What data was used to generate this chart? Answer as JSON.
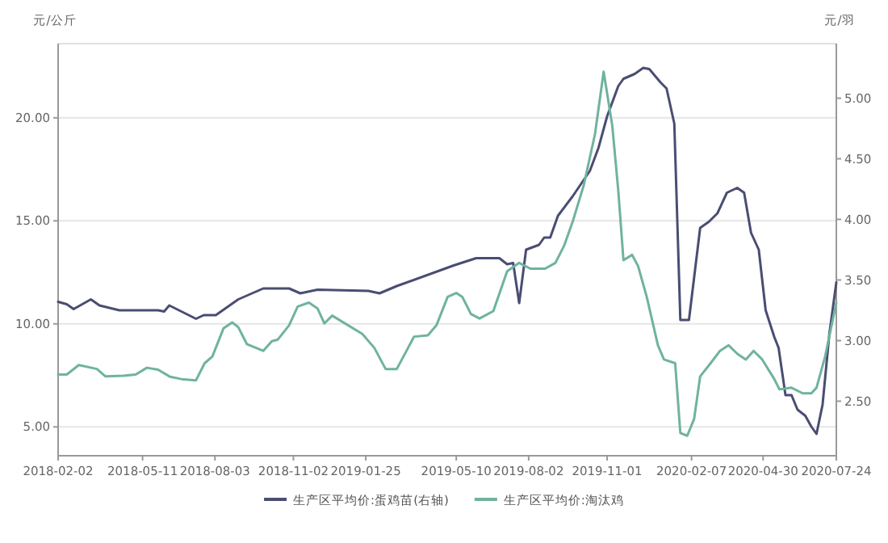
{
  "chart_data": {
    "type": "line",
    "ylabel": "元/公斤",
    "y2label": "元/羽",
    "grid": "y",
    "legend": "bottom",
    "xlim": [
      "2018-02-02",
      "2020-07-24"
    ],
    "xticks": [
      "2018-02-02",
      "2018-05-11",
      "2018-08-03",
      "2018-11-02",
      "2019-01-25",
      "2019-05-10",
      "2019-08-02",
      "2019-11-01",
      "2020-02-07",
      "2020-04-30",
      "2020-07-24"
    ],
    "ylim": [
      3.6,
      23.6
    ],
    "yticks": [
      {
        "value": 5,
        "label": "5.00"
      },
      {
        "value": 10,
        "label": "10.00"
      },
      {
        "value": 15,
        "label": "15.00"
      },
      {
        "value": 20,
        "label": "20.00"
      }
    ],
    "y2lim": [
      2.05,
      5.45
    ],
    "y2ticks": [
      {
        "value": 2.5,
        "label": "2.50"
      },
      {
        "value": 3,
        "label": "3.00"
      },
      {
        "value": 3.5,
        "label": "3.50"
      },
      {
        "value": 4,
        "label": "4.00"
      },
      {
        "value": 4.5,
        "label": "4.50"
      },
      {
        "value": 5,
        "label": "5.00"
      }
    ],
    "series": [
      {
        "name": "生产区平均价:蛋鸡苗(右轴)",
        "color": "#4a4d72",
        "axis": "y2",
        "x": [
          "2018-02-02",
          "2018-02-12",
          "2018-02-20",
          "2018-03-12",
          "2018-03-22",
          "2018-04-14",
          "2018-05-29",
          "2018-06-05",
          "2018-06-11",
          "2018-07-12",
          "2018-07-21",
          "2018-08-04",
          "2018-08-30",
          "2018-09-28",
          "2018-10-28",
          "2018-11-10",
          "2018-11-30",
          "2019-01-28",
          "2019-02-10",
          "2019-03-02",
          "2019-05-07",
          "2019-06-02",
          "2019-06-29",
          "2019-07-08",
          "2019-07-15",
          "2019-07-22",
          "2019-07-30",
          "2019-08-14",
          "2019-08-20",
          "2019-08-27",
          "2019-09-05",
          "2019-09-22",
          "2019-10-12",
          "2019-10-22",
          "2019-11-01",
          "2019-11-14",
          "2019-11-20",
          "2019-12-03",
          "2019-12-13",
          "2019-12-20",
          "2020-01-02",
          "2020-01-09",
          "2020-01-18",
          "2020-01-25",
          "2020-02-04",
          "2020-02-17",
          "2020-02-27",
          "2020-03-08",
          "2020-03-19",
          "2020-03-31",
          "2020-04-08",
          "2020-04-16",
          "2020-04-25",
          "2020-05-03",
          "2020-05-13",
          "2020-05-18",
          "2020-05-26",
          "2020-06-02",
          "2020-06-09",
          "2020-06-18",
          "2020-06-25",
          "2020-07-01",
          "2020-07-08",
          "2020-07-16",
          "2020-07-24"
        ],
        "values": [
          3.32,
          3.3,
          3.26,
          3.34,
          3.29,
          3.25,
          3.25,
          3.24,
          3.29,
          3.18,
          3.21,
          3.21,
          3.34,
          3.43,
          3.43,
          3.39,
          3.42,
          3.41,
          3.39,
          3.45,
          3.62,
          3.68,
          3.68,
          3.63,
          3.64,
          3.31,
          3.75,
          3.79,
          3.85,
          3.85,
          4.03,
          4.19,
          4.4,
          4.59,
          4.85,
          5.1,
          5.16,
          5.2,
          5.25,
          5.24,
          5.13,
          5.08,
          4.79,
          3.17,
          3.17,
          3.93,
          3.98,
          4.05,
          4.22,
          4.26,
          4.22,
          3.89,
          3.75,
          3.25,
          3.03,
          2.94,
          2.55,
          2.55,
          2.43,
          2.38,
          2.29,
          2.23,
          2.47,
          3.06,
          3.48
        ]
      },
      {
        "name": "生产区平均价:淘汰鸡",
        "color": "#6fb39f",
        "axis": "y",
        "x": [
          "2018-02-02",
          "2018-02-12",
          "2018-02-26",
          "2018-03-19",
          "2018-03-29",
          "2018-04-19",
          "2018-05-03",
          "2018-05-16",
          "2018-05-29",
          "2018-06-12",
          "2018-06-25",
          "2018-07-12",
          "2018-07-22",
          "2018-07-31",
          "2018-08-13",
          "2018-08-23",
          "2018-08-30",
          "2018-09-09",
          "2018-09-28",
          "2018-10-08",
          "2018-10-15",
          "2018-10-28",
          "2018-11-07",
          "2018-11-20",
          "2018-11-30",
          "2018-12-08",
          "2018-12-17",
          "2019-01-21",
          "2019-02-04",
          "2019-02-17",
          "2019-03-02",
          "2019-03-16",
          "2019-03-22",
          "2019-04-07",
          "2019-04-17",
          "2019-04-30",
          "2019-05-10",
          "2019-05-17",
          "2019-05-27",
          "2019-06-06",
          "2019-06-22",
          "2019-07-08",
          "2019-07-22",
          "2019-08-04",
          "2019-08-21",
          "2019-09-02",
          "2019-09-12",
          "2019-09-22",
          "2019-10-05",
          "2019-10-18",
          "2019-10-28",
          "2019-11-07",
          "2019-11-14",
          "2019-11-20",
          "2019-11-30",
          "2019-12-07",
          "2019-12-17",
          "2019-12-30",
          "2020-01-06",
          "2020-01-19",
          "2020-01-25",
          "2020-02-02",
          "2020-02-10",
          "2020-02-17",
          "2020-03-01",
          "2020-03-11",
          "2020-03-21",
          "2020-03-31",
          "2020-04-10",
          "2020-04-19",
          "2020-04-29",
          "2020-05-13",
          "2020-05-19",
          "2020-06-02",
          "2020-06-15",
          "2020-06-25",
          "2020-07-01",
          "2020-07-11",
          "2020-07-24"
        ],
        "values": [
          7.54,
          7.54,
          8.0,
          7.81,
          7.45,
          7.48,
          7.54,
          7.87,
          7.78,
          7.43,
          7.32,
          7.26,
          8.09,
          8.42,
          9.79,
          10.07,
          9.84,
          9.02,
          8.69,
          9.16,
          9.24,
          9.93,
          10.84,
          11.03,
          10.75,
          10.02,
          10.4,
          9.51,
          8.83,
          7.81,
          7.81,
          8.91,
          9.38,
          9.44,
          9.93,
          11.31,
          11.5,
          11.31,
          10.48,
          10.26,
          10.62,
          12.55,
          12.96,
          12.68,
          12.68,
          12.96,
          13.78,
          14.95,
          16.74,
          19.22,
          22.24,
          19.62,
          16.46,
          13.09,
          13.35,
          12.8,
          11.31,
          8.96,
          8.27,
          8.09,
          4.7,
          4.57,
          5.39,
          7.45,
          8.14,
          8.69,
          8.96,
          8.55,
          8.27,
          8.69,
          8.27,
          7.32,
          6.82,
          6.9,
          6.63,
          6.63,
          6.9,
          8.42,
          11.03
        ]
      }
    ]
  }
}
